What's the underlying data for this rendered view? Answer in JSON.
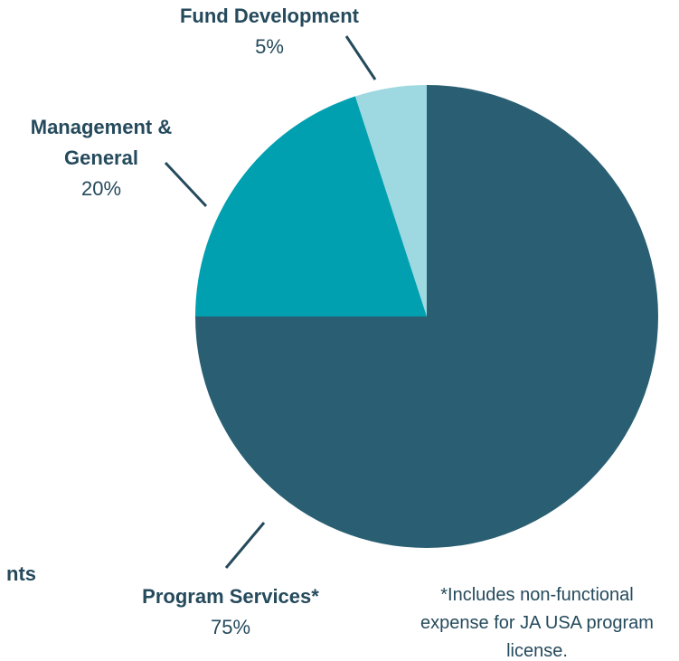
{
  "chart_data": {
    "type": "pie",
    "categories": [
      "Program Services*",
      "Management & General",
      "Fund Development"
    ],
    "values": [
      75,
      20,
      5
    ],
    "value_labels": [
      "75%",
      "20%",
      "5%"
    ],
    "colors": [
      "#2a5f73",
      "#00a0b0",
      "#9ed8e0"
    ],
    "annotation": "*Includes non-functional expense for JA USA program license.",
    "clipped_text": "nts"
  }
}
